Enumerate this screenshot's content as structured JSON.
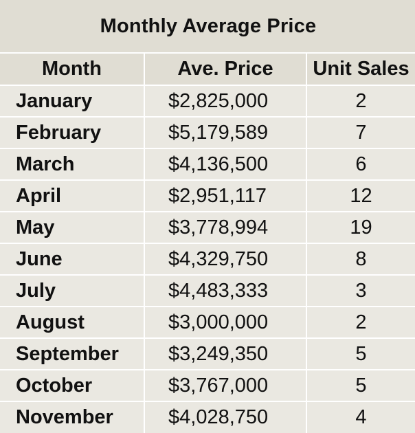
{
  "title": "Monthly Average Price",
  "chart_data": {
    "type": "table",
    "title": "Monthly Average Price",
    "columns": [
      "Month",
      "Ave. Price",
      "Unit Sales"
    ],
    "rows": [
      [
        "January",
        "$2,825,000",
        "2"
      ],
      [
        "February",
        "$5,179,589",
        "7"
      ],
      [
        "March",
        "$4,136,500",
        "6"
      ],
      [
        "April",
        "$2,951,117",
        "12"
      ],
      [
        "May",
        "$3,778,994",
        "19"
      ],
      [
        "June",
        "$4,329,750",
        "8"
      ],
      [
        "July",
        "$4,483,333",
        "3"
      ],
      [
        "August",
        "$3,000,000",
        "2"
      ],
      [
        "September",
        "$3,249,350",
        "5"
      ],
      [
        "October",
        "$3,767,000",
        "5"
      ],
      [
        "November",
        "$4,028,750",
        "4"
      ]
    ]
  },
  "colors": {
    "header_background": "#e0ddd3",
    "row_background": "#eae8e1",
    "grid_lines": "#ffffff",
    "text": "#111111"
  }
}
